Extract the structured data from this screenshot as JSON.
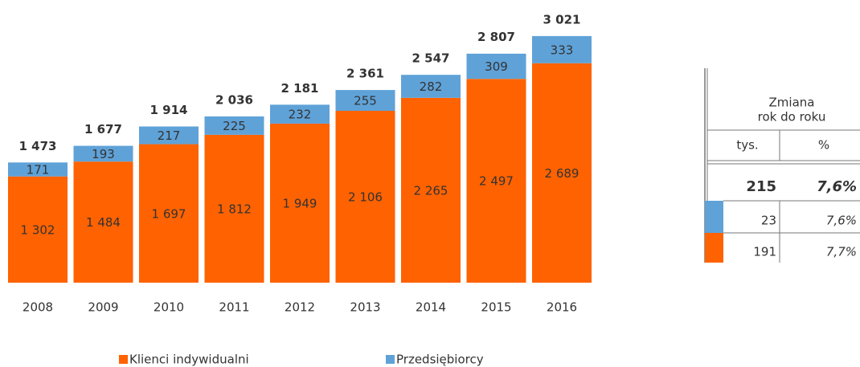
{
  "chart_data": {
    "type": "stacked_bar",
    "categories": [
      "2008",
      "2009",
      "2010",
      "2011",
      "2012",
      "2013",
      "2014",
      "2015",
      "2016"
    ],
    "series": [
      {
        "name": "Klienci indywidualni",
        "color": "#ff6200",
        "values": [
          1302,
          1484,
          1697,
          1812,
          1949,
          2106,
          2265,
          2497,
          2689
        ],
        "value_labels": [
          "1 302",
          "1 484",
          "1 697",
          "1 812",
          "1 949",
          "2 106",
          "2 265",
          "2 497",
          "2 689"
        ]
      },
      {
        "name": "Przedsiębiorcy",
        "color": "#5fa2d8",
        "values": [
          171,
          193,
          217,
          225,
          232,
          255,
          282,
          309,
          333
        ],
        "value_labels": [
          "171",
          "193",
          "217",
          "225",
          "232",
          "255",
          "282",
          "309",
          "333"
        ]
      }
    ],
    "totals": [
      1473,
      1677,
      1914,
      2036,
      2181,
      2361,
      2547,
      2807,
      3021
    ],
    "total_labels": [
      "1 473",
      "1 677",
      "1 914",
      "2 036",
      "2 181",
      "2 361",
      "2 547",
      "2 807",
      "3 021"
    ]
  },
  "side_table": {
    "header": [
      "Zmiana",
      "rok do roku"
    ],
    "columns": [
      "tys.",
      "%"
    ],
    "rows": [
      [
        "215",
        "7,6%"
      ],
      [
        "23",
        "7,6%"
      ],
      [
        "191",
        "7,7%"
      ]
    ]
  }
}
